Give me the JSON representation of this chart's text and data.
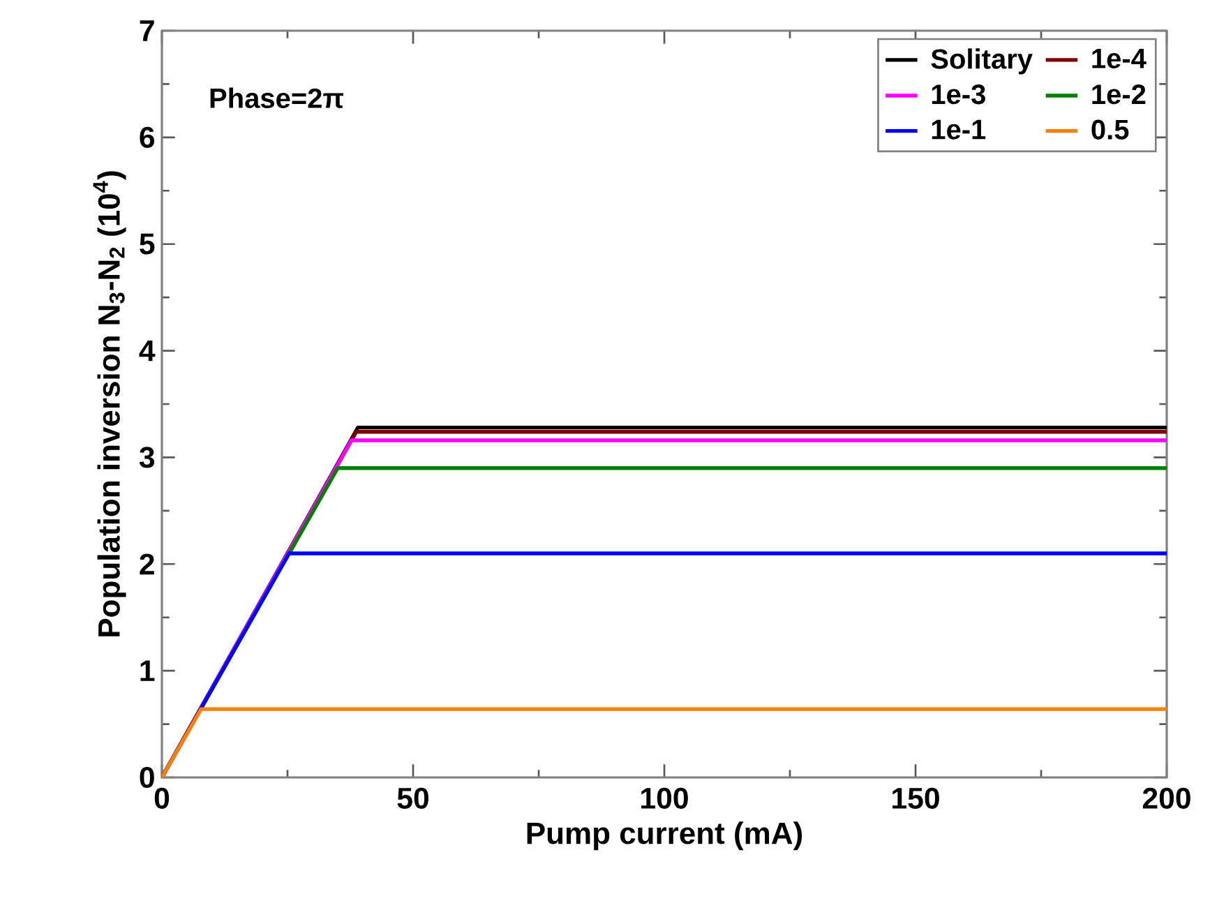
{
  "chart_data": {
    "type": "line",
    "xlabel": "Pump current (mA)",
    "ylabel": "Population inversion N$_{3}$-N$_{2}$ (10$^{4}$)",
    "annotations": [
      "Phase=2π"
    ],
    "xlim": [
      0,
      200
    ],
    "ylim": [
      0,
      7
    ],
    "xticks": [
      0,
      50,
      100,
      150,
      200
    ],
    "yticks": [
      0,
      1,
      2,
      3,
      4,
      5,
      6,
      7
    ],
    "legend": "top right",
    "grid": false,
    "marker": "none",
    "line_style": "solid",
    "series": [
      {
        "name": "Solitary",
        "color": "#000000",
        "x": [
          0,
          39,
          200
        ],
        "values": [
          0,
          3.28,
          3.28
        ]
      },
      {
        "name": "1e-4",
        "color": "#800000",
        "x": [
          0,
          38.7,
          200
        ],
        "values": [
          0,
          3.24,
          3.24
        ]
      },
      {
        "name": "1e-3",
        "color": "#ff00ff",
        "x": [
          0,
          37.7,
          200
        ],
        "values": [
          0,
          3.16,
          3.16
        ]
      },
      {
        "name": "1e-2",
        "color": "#008000",
        "x": [
          0,
          35,
          200
        ],
        "values": [
          0,
          2.9,
          2.9
        ]
      },
      {
        "name": "1e-1",
        "color": "#0000ff",
        "x": [
          0,
          25.3,
          200
        ],
        "values": [
          0,
          2.1,
          2.1
        ]
      },
      {
        "name": "0.5",
        "color": "#ff8000",
        "x": [
          0,
          7.8,
          200
        ],
        "values": [
          0,
          0.64,
          0.64
        ]
      }
    ]
  }
}
